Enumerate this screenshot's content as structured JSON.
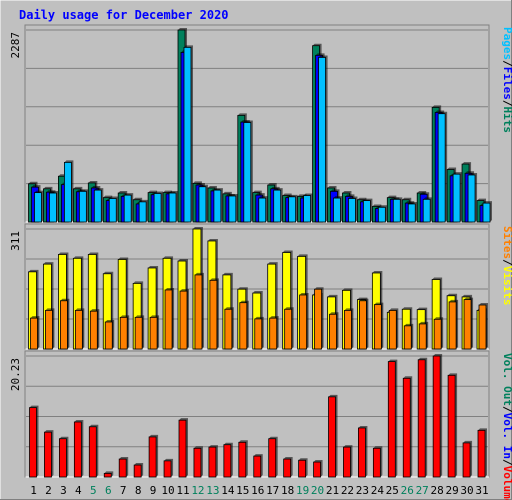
{
  "chart_data": {
    "type": "bar",
    "title": "Daily usage for December 2020",
    "days": [
      "1",
      "2",
      "3",
      "4",
      "5",
      "6",
      "7",
      "8",
      "9",
      "10",
      "11",
      "12",
      "13",
      "14",
      "15",
      "16",
      "17",
      "18",
      "19",
      "20",
      "21",
      "22",
      "23",
      "24",
      "25",
      "26",
      "27",
      "28",
      "29",
      "30",
      "31"
    ],
    "weekend_days": [
      "5",
      "6",
      "12",
      "13",
      "19",
      "20",
      "26",
      "27"
    ],
    "panels": [
      {
        "name": "hits-pages-files",
        "ymax_label": "2287",
        "ymax": 2287,
        "series": [
          {
            "name": "Hits",
            "color": "#00805c",
            "values": [
              455,
              395,
              545,
              395,
              465,
              290,
              345,
              265,
              350,
              350,
              2287,
              460,
              405,
              335,
              1270,
              350,
              440,
              315,
              305,
              2100,
              405,
              345,
              265,
              185,
              290,
              265,
              345,
              1365,
              625,
              690,
              255
            ]
          },
          {
            "name": "Files",
            "color": "#0000ff",
            "values": [
              415,
              355,
              445,
              360,
              405,
              255,
              305,
              215,
              325,
              335,
              2020,
              440,
              370,
              310,
              1190,
              320,
              395,
              290,
              285,
              1985,
              365,
              305,
              240,
              160,
              270,
              225,
              330,
              1305,
              550,
              580,
              195
            ]
          },
          {
            "name": "Pages",
            "color": "#00c0ff",
            "values": [
              350,
              345,
              710,
              365,
              380,
              280,
              320,
              240,
              340,
              345,
              2080,
              420,
              380,
              310,
              1185,
              285,
              380,
              300,
              315,
              1960,
              285,
              280,
              255,
              175,
              270,
              215,
              270,
              1290,
              570,
              560,
              225
            ]
          }
        ]
      },
      {
        "name": "visits-sites",
        "ymax_label": "311",
        "ymax": 311,
        "series": [
          {
            "name": "Visits",
            "color": "#ffff00",
            "values": [
              200,
              220,
              245,
              235,
              245,
              195,
              232,
              170,
              210,
              235,
              228,
              311,
              280,
              192,
              155,
              145,
              220,
              250,
              240,
              140,
              135,
              152,
              128,
              197,
              95,
              103,
              102,
              180,
              138,
              135,
              100
            ]
          },
          {
            "name": "Sites",
            "color": "#ff8000",
            "values": [
              80,
              100,
              125,
              100,
              98,
              70,
              82,
              82,
              82,
              153,
              150,
              192,
              178,
              103,
              120,
              78,
              80,
              103,
              140,
              155,
              90,
              100,
              125,
              115,
              100,
              60,
              65,
              77,
              122,
              128,
              114
            ]
          }
        ]
      },
      {
        "name": "volume",
        "ymax_label": "20.23",
        "ymax": 20.23,
        "series": [
          {
            "name": "Volume",
            "color": "#ff0000",
            "values": [
              11.6,
              7.5,
              6.4,
              9.2,
              8.4,
              0.6,
              3.0,
              2.0,
              6.7,
              2.7,
              9.5,
              4.8,
              5.0,
              5.4,
              5.8,
              3.5,
              6.4,
              3.0,
              2.8,
              2.5,
              13.4,
              5.0,
              8.2,
              4.8,
              19.3,
              16.5,
              19.6,
              20.23,
              17.0,
              5.7,
              7.8
            ]
          }
        ]
      }
    ],
    "legend_right": [
      {
        "text": "Hits",
        "color": "#00805c",
        "panel": 0
      },
      {
        "text": "Files",
        "color": "#0000ff",
        "panel": 0
      },
      {
        "text": "Pages",
        "color": "#00c0ff",
        "panel": 0
      },
      {
        "text": "Visits",
        "color": "#ffff00",
        "panel": 1
      },
      {
        "text": "Sites",
        "color": "#ff8000",
        "panel": 1
      },
      {
        "text": "Volume",
        "color": "#ff0000",
        "panel": 2
      },
      {
        "text": "Vol. In",
        "color": "#0000ff",
        "panel": 2
      },
      {
        "text": "Vol. Out",
        "color": "#00805c",
        "panel": 2
      }
    ],
    "grid": true
  },
  "colors": {
    "title": "#0000ff",
    "weekday_label": "#000000",
    "weekend_label": "#00805c",
    "separator": "#000000",
    "background": "#c0c0c0"
  }
}
